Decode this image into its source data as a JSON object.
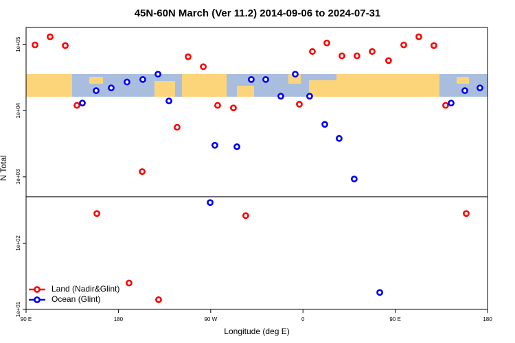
{
  "chart_data": {
    "type": "scatter",
    "title": "45N-60N March (Ver 11.2)   2014-09-06 to 2024-07-31",
    "x_label": "Longitude (deg E)",
    "y_label": "N Total",
    "xlim": [
      90,
      540
    ],
    "xticks": [
      {
        "value": 90,
        "label": "90 E"
      },
      {
        "value": 180,
        "label": "180"
      },
      {
        "value": 270,
        "label": "90 W"
      },
      {
        "value": 360,
        "label": "0"
      },
      {
        "value": 450,
        "label": "90 E"
      },
      {
        "value": 540,
        "label": "180"
      }
    ],
    "ylim": [
      10,
      180000
    ],
    "log_y": true,
    "yticks": [
      {
        "value": 10,
        "label": "1e+01"
      },
      {
        "value": 100,
        "label": "1e+02"
      },
      {
        "value": 1000,
        "label": "1e+03"
      },
      {
        "value": 10000,
        "label": "1e+04"
      },
      {
        "value": 100000,
        "label": "1e+05"
      }
    ],
    "hline": 500,
    "legend": "bottom-left",
    "series": [
      {
        "name": "Land (Nadir&Glint)",
        "color": "#ff0000",
        "x": [
          98.7,
          113.4,
          128.2,
          139.6,
          159,
          190.4,
          203.2,
          219.2,
          237.3,
          248,
          262.8,
          276.8,
          292.2,
          304.2,
          356.5,
          369.2,
          383.3,
          398,
          412.7,
          427.5,
          443.5,
          458.3,
          473,
          487.7,
          499.1,
          519.2
        ],
        "values": [
          98000,
          130000,
          96000,
          12000,
          280,
          25,
          1200,
          14,
          5600,
          65000,
          46000,
          12000,
          11000,
          260,
          12500,
          78000,
          105000,
          67000,
          67000,
          78000,
          57000,
          98000,
          130000,
          96000,
          12000,
          280
        ]
      },
      {
        "name": "Ocean (Glint)",
        "color": "#0000ee",
        "x": [
          144.9,
          158.3,
          173,
          188.4,
          203.8,
          218.6,
          229.3,
          269.5,
          274.1,
          295.6,
          309.6,
          323.7,
          338.4,
          352.5,
          366.5,
          381.3,
          395.3,
          410,
          434.9,
          504.5,
          517.9,
          532.6
        ],
        "values": [
          13000,
          20000,
          22000,
          27000,
          29500,
          35500,
          14000,
          410,
          3000,
          2850,
          29500,
          29500,
          16500,
          35500,
          16500,
          6200,
          3800,
          930,
          18,
          13000,
          20000,
          22000
        ]
      }
    ]
  }
}
